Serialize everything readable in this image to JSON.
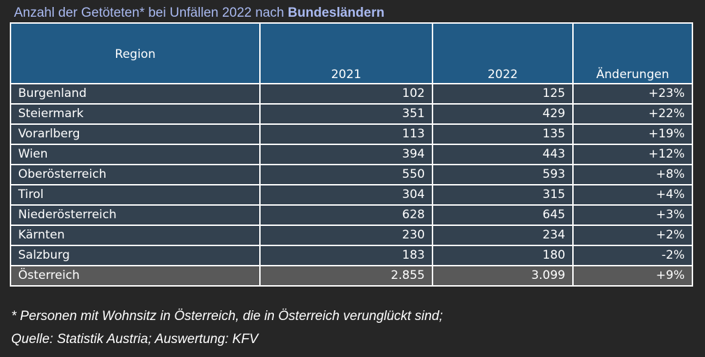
{
  "title": {
    "prefix": "Anzahl der Getöteten* bei Unfällen 2022 nach ",
    "emphasis": "Bundesländern"
  },
  "chart_data": {
    "type": "table",
    "columns": [
      "Region",
      "2021",
      "2022",
      "Änderungen"
    ],
    "rows": [
      {
        "region": "Burgenland",
        "y2021": "102",
        "y2022": "125",
        "change": "+23%"
      },
      {
        "region": "Steiermark",
        "y2021": "351",
        "y2022": "429",
        "change": "+22%"
      },
      {
        "region": "Vorarlberg",
        "y2021": "113",
        "y2022": "135",
        "change": "+19%"
      },
      {
        "region": "Wien",
        "y2021": "394",
        "y2022": "443",
        "change": "+12%"
      },
      {
        "region": "Oberösterreich",
        "y2021": "550",
        "y2022": "593",
        "change": "+8%"
      },
      {
        "region": "Tirol",
        "y2021": "304",
        "y2022": "315",
        "change": "+4%"
      },
      {
        "region": "Niederösterreich",
        "y2021": "628",
        "y2022": "645",
        "change": "+3%"
      },
      {
        "region": "Kärnten",
        "y2021": "230",
        "y2022": "234",
        "change": "+2%"
      },
      {
        "region": "Salzburg",
        "y2021": "183",
        "y2022": "180",
        "change": "-2%"
      }
    ],
    "total": {
      "region": "Österreich",
      "y2021": "2.855",
      "y2022": "3.099",
      "change": "+9%"
    }
  },
  "footnote": {
    "line1": "* Personen mit Wohnsitz in Österreich, die in Österreich verunglückt sind;",
    "line2": "Quelle: Statistik Austria; Auswertung: KFV"
  },
  "colors": {
    "background": "#262626",
    "title": "#a9b9f0",
    "header": "#215a85",
    "row": "#33414f",
    "total_row": "#595959",
    "border": "#ffffff"
  }
}
